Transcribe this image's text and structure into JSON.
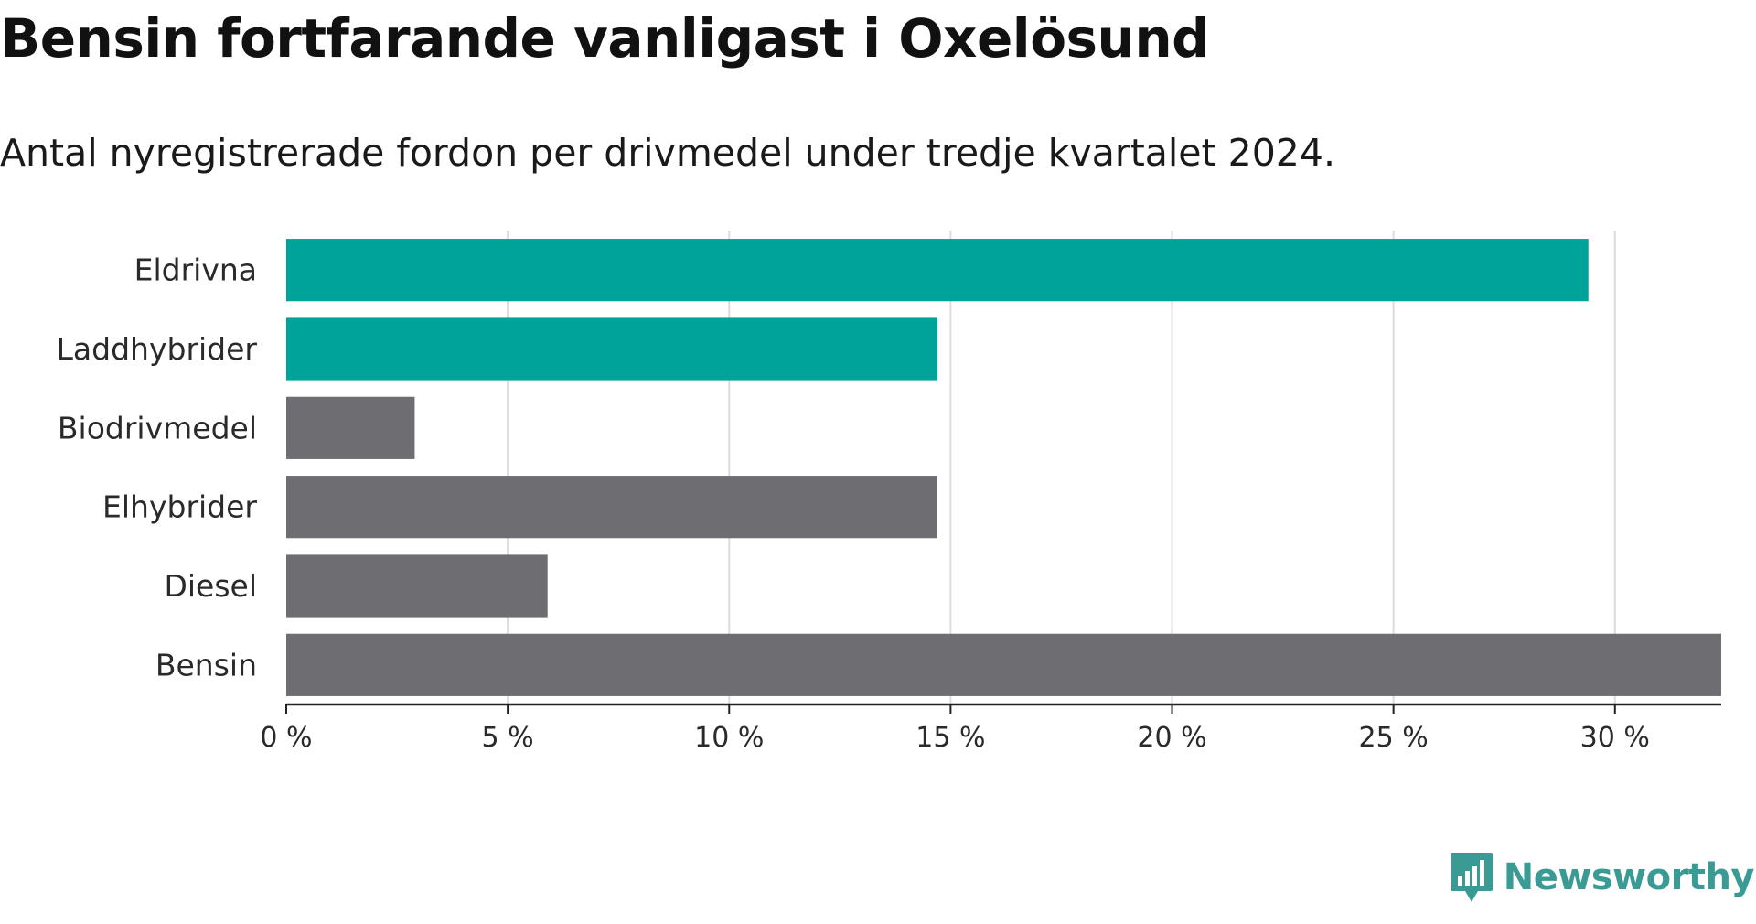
{
  "header": {
    "title": "Bensin fortfarande vanligast i Oxelösund",
    "subtitle": "Antal nyregistrerade fordon per drivmedel under tredje kvartalet 2024."
  },
  "brand": {
    "name": "Newsworthy",
    "logo_icon": "newsworthy-chart-bubble-icon",
    "color": "#3a9a94"
  },
  "chart_data": {
    "type": "bar",
    "orientation": "horizontal",
    "categories": [
      "Eldrivna",
      "Laddhybrider",
      "Biodrivmedel",
      "Elhybrider",
      "Diesel",
      "Bensin"
    ],
    "values": [
      29.4,
      14.7,
      2.9,
      14.7,
      5.9,
      32.4
    ],
    "unit": "%",
    "xlim": [
      0,
      32.4
    ],
    "xticks": [
      0,
      5,
      10,
      15,
      20,
      25,
      30
    ],
    "xtick_labels": [
      "0 %",
      "5 %",
      "10 %",
      "15 %",
      "20 %",
      "25 %",
      "30 %"
    ],
    "bar_colors": [
      "#00a39a",
      "#00a39a",
      "#6e6d72",
      "#6e6d72",
      "#6e6d72",
      "#6e6d72"
    ],
    "grid": "vertical",
    "gridline_color": "#dcdcdc"
  }
}
